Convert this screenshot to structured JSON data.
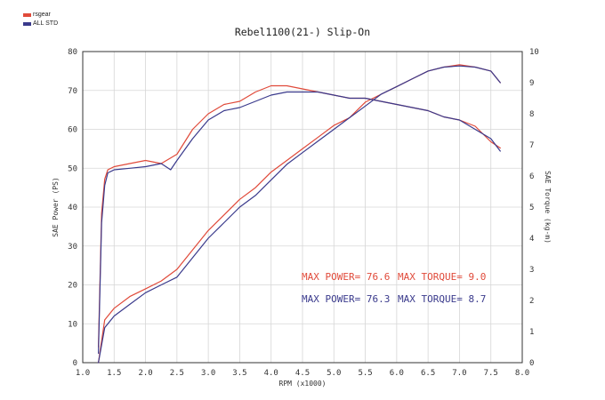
{
  "legend": [
    {
      "label": "rsgear",
      "color": "#e04a3a"
    },
    {
      "label": "ALL STD",
      "color": "#3a3a8c"
    }
  ],
  "chart_data": {
    "type": "line",
    "title": "Rebel1100(21-) Slip-On",
    "xlabel": "RPM (x1000)",
    "ylabel": "SAE Power (PS)",
    "y2label": "SAE Torque (kg-m)",
    "xlim": [
      1.0,
      8.0
    ],
    "ylim": [
      0,
      80
    ],
    "y2lim": [
      0,
      10
    ],
    "xticks": [
      "1.0",
      "1.5",
      "2.0",
      "2.5",
      "3.0",
      "3.5",
      "4.0",
      "4.5",
      "5.0",
      "5.5",
      "6.0",
      "6.5",
      "7.0",
      "7.5",
      "8.0"
    ],
    "yticks": [
      "0",
      "10",
      "20",
      "30",
      "40",
      "50",
      "60",
      "70",
      "80"
    ],
    "y2ticks": [
      "0",
      "1",
      "2",
      "3",
      "4",
      "5",
      "6",
      "7",
      "8",
      "9",
      "10"
    ],
    "grid": true,
    "series": [
      {
        "name": "rsgear",
        "quantity": "power",
        "axis": "left",
        "color": "#e04a3a",
        "x": [
          1.25,
          1.35,
          1.5,
          1.75,
          2.0,
          2.25,
          2.5,
          2.75,
          3.0,
          3.25,
          3.5,
          3.75,
          4.0,
          4.25,
          4.5,
          4.75,
          5.0,
          5.25,
          5.5,
          5.75,
          6.0,
          6.25,
          6.5,
          6.75,
          7.0,
          7.25,
          7.5,
          7.65
        ],
        "y": [
          0,
          11,
          14,
          17,
          19,
          21,
          24,
          29,
          34,
          38,
          42,
          45,
          49,
          52,
          55,
          58,
          61,
          63,
          67,
          69,
          71,
          73,
          75,
          76,
          76.6,
          76,
          75,
          72
        ]
      },
      {
        "name": "ALL STD",
        "quantity": "power",
        "axis": "left",
        "color": "#3a3a8c",
        "x": [
          1.25,
          1.35,
          1.5,
          1.75,
          2.0,
          2.25,
          2.5,
          2.75,
          3.0,
          3.25,
          3.5,
          3.75,
          4.0,
          4.25,
          4.5,
          4.75,
          5.0,
          5.25,
          5.5,
          5.75,
          6.0,
          6.25,
          6.5,
          6.75,
          7.0,
          7.25,
          7.5,
          7.65
        ],
        "y": [
          0,
          9,
          12,
          15,
          18,
          20,
          22,
          27,
          32,
          36,
          40,
          43,
          47,
          51,
          54,
          57,
          60,
          63,
          66,
          69,
          71,
          73,
          75,
          76,
          76.3,
          76,
          75,
          72
        ]
      },
      {
        "name": "rsgear",
        "quantity": "torque",
        "axis": "right",
        "color": "#e04a3a",
        "x": [
          1.25,
          1.3,
          1.35,
          1.4,
          1.5,
          1.75,
          2.0,
          2.25,
          2.5,
          2.75,
          3.0,
          3.25,
          3.5,
          3.75,
          4.0,
          4.25,
          4.5,
          4.75,
          5.0,
          5.25,
          5.5,
          5.75,
          6.0,
          6.25,
          6.5,
          6.75,
          7.0,
          7.25,
          7.5,
          7.65
        ],
        "y": [
          0.5,
          4.8,
          5.9,
          6.2,
          6.3,
          6.4,
          6.5,
          6.4,
          6.7,
          7.5,
          8.0,
          8.3,
          8.4,
          8.7,
          8.9,
          8.9,
          8.8,
          8.7,
          8.6,
          8.5,
          8.5,
          8.4,
          8.3,
          8.2,
          8.1,
          7.9,
          7.8,
          7.6,
          7.1,
          6.9
        ]
      },
      {
        "name": "ALL STD",
        "quantity": "torque",
        "axis": "right",
        "color": "#3a3a8c",
        "x": [
          1.25,
          1.3,
          1.35,
          1.4,
          1.5,
          1.75,
          2.0,
          2.25,
          2.4,
          2.5,
          2.75,
          3.0,
          3.25,
          3.5,
          3.75,
          4.0,
          4.25,
          4.5,
          4.75,
          5.0,
          5.25,
          5.5,
          5.75,
          6.0,
          6.25,
          6.5,
          6.75,
          7.0,
          7.25,
          7.5,
          7.65
        ],
        "y": [
          0.3,
          4.5,
          5.7,
          6.1,
          6.2,
          6.25,
          6.3,
          6.4,
          6.2,
          6.5,
          7.2,
          7.8,
          8.1,
          8.2,
          8.4,
          8.6,
          8.7,
          8.7,
          8.7,
          8.6,
          8.5,
          8.5,
          8.4,
          8.3,
          8.2,
          8.1,
          7.9,
          7.8,
          7.5,
          7.2,
          6.8
        ]
      }
    ],
    "annotations": [
      {
        "text": "MAX POWER= 76.6",
        "color": "#e04a3a"
      },
      {
        "text": "MAX TORQUE= 9.0",
        "color": "#e04a3a"
      },
      {
        "text": "MAX POWER= 76.3",
        "color": "#3a3a8c"
      },
      {
        "text": "MAX TORQUE= 8.7",
        "color": "#3a3a8c"
      }
    ]
  }
}
